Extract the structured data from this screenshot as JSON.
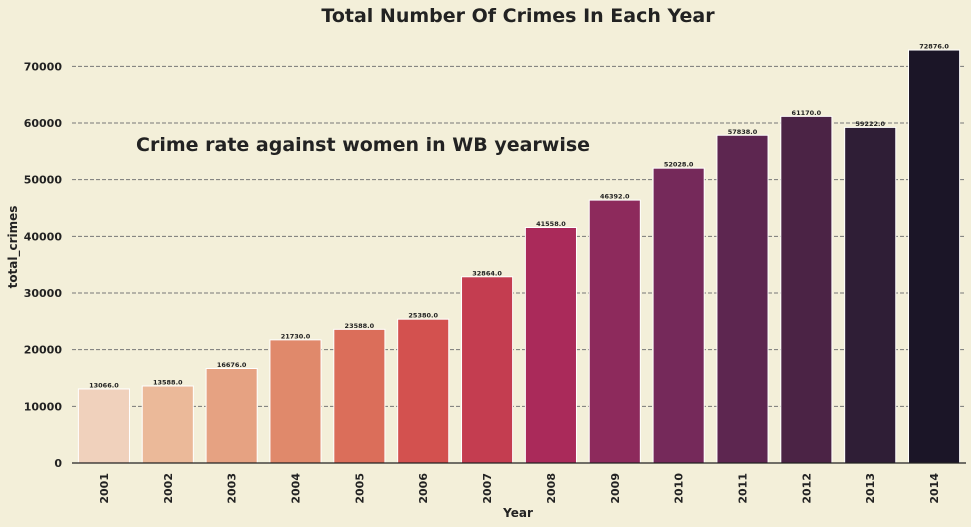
{
  "chart_data": {
    "type": "bar",
    "title": "Total Number Of Crimes In Each Year",
    "annotation": "Crime rate against women in WB yearwise",
    "xlabel": "Year",
    "ylabel": "total_crimes",
    "ylim": [
      0,
      75000
    ],
    "yticks": [
      0,
      10000,
      20000,
      30000,
      40000,
      50000,
      60000,
      70000
    ],
    "grid": true,
    "categories": [
      "2001",
      "2002",
      "2003",
      "2004",
      "2005",
      "2006",
      "2007",
      "2008",
      "2009",
      "2010",
      "2011",
      "2012",
      "2013",
      "2014"
    ],
    "values": [
      13066.0,
      13588.0,
      16676.0,
      21730.0,
      23588.0,
      25380.0,
      32864.0,
      41558.0,
      46392.0,
      52028.0,
      57838.0,
      61170.0,
      59222.0,
      72876.0
    ],
    "value_labels": [
      "13066.0",
      "13588.0",
      "16676.0",
      "21730.0",
      "23588.0",
      "25380.0",
      "32864.0",
      "41558.0",
      "46392.0",
      "52028.0",
      "57838.0",
      "61170.0",
      "59222.0",
      "72876.0"
    ],
    "colors": [
      "#f0d1bc",
      "#ebb999",
      "#e6a282",
      "#e0896b",
      "#db6e5a",
      "#d3514f",
      "#c43d50",
      "#aa2a5a",
      "#8d2a5c",
      "#75295a",
      "#5d2650",
      "#4b2345",
      "#2f1e36",
      "#1b1527"
    ]
  }
}
